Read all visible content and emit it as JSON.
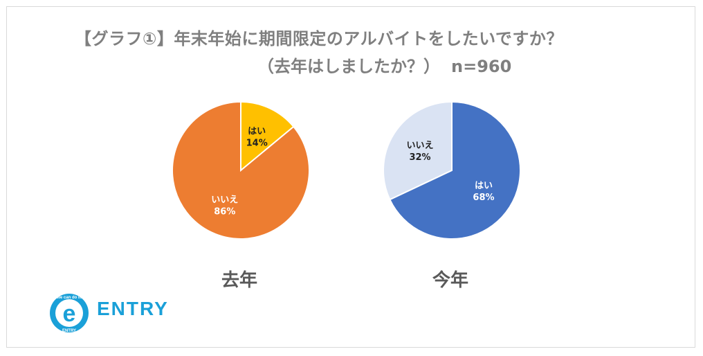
{
  "title": {
    "line1": "【グラフ①】年末年始に期間限定のアルバイトをしたいですか？",
    "line2": "（去年はしましたか？）",
    "n": "n=960"
  },
  "colors": {
    "orange": "#ED7D31",
    "yellow": "#FFC000",
    "blue": "#4472C4",
    "lightblue": "#DAE3F3"
  },
  "chart_data": [
    {
      "type": "pie",
      "label": "去年",
      "slices": [
        {
          "name": "はい",
          "value": 14,
          "display": "14%",
          "color": "#FFC000",
          "text_color": "#222222"
        },
        {
          "name": "いいえ",
          "value": 86,
          "display": "86%",
          "color": "#ED7D31",
          "text_color": "#ffffff"
        }
      ]
    },
    {
      "type": "pie",
      "label": "今年",
      "slices": [
        {
          "name": "はい",
          "value": 68,
          "display": "68%",
          "color": "#4472C4",
          "text_color": "#ffffff"
        },
        {
          "name": "いいえ",
          "value": 32,
          "display": "32%",
          "color": "#DAE3F3",
          "text_color": "#222222"
        }
      ]
    }
  ],
  "logo": {
    "text": "ENTRY",
    "badge_letter": "e",
    "badge_top": "We can do it!",
    "badge_bottom": "ENTRY",
    "icon": "entry-logo-badge"
  }
}
